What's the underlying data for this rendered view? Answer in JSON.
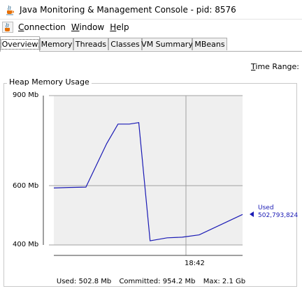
{
  "window": {
    "title": "Java Monitoring & Management Console - pid: 8576"
  },
  "icons": {
    "app": "java-cup-icon"
  },
  "menu": [
    {
      "mnemonic": "C",
      "rest": "onnection"
    },
    {
      "mnemonic": "W",
      "rest": "indow"
    },
    {
      "mnemonic": "H",
      "rest": "elp"
    }
  ],
  "tabs": [
    {
      "label": "Overview",
      "active": true
    },
    {
      "label": "Memory"
    },
    {
      "label": "Threads"
    },
    {
      "label": "Classes"
    },
    {
      "label": "VM Summary"
    },
    {
      "label": "MBeans"
    }
  ],
  "time_range": {
    "mnemonic": "T",
    "rest": "ime Range:"
  },
  "panel": {
    "title": "Heap Memory Usage"
  },
  "chart_data": {
    "type": "line",
    "title": "Heap Memory Usage",
    "ylim": [
      400,
      900
    ],
    "ytick_labels": [
      "900 Mb",
      "600 Mb",
      "400 Mb"
    ],
    "yticks": [
      900,
      600,
      400
    ],
    "xtick_labels": [
      "18:42"
    ],
    "grid": true,
    "series": [
      {
        "name": "Used",
        "color": "#1a1ab5",
        "points": [
          [
            0.0,
            592
          ],
          [
            0.08,
            594
          ],
          [
            0.17,
            595
          ],
          [
            0.28,
            740
          ],
          [
            0.34,
            805
          ],
          [
            0.4,
            805
          ],
          [
            0.45,
            810
          ],
          [
            0.51,
            414
          ],
          [
            0.6,
            424
          ],
          [
            0.68,
            426
          ],
          [
            0.77,
            434
          ],
          [
            1.0,
            502.8
          ]
        ]
      }
    ],
    "legend": {
      "label": "Used",
      "value": "502,793,824",
      "placement": "right"
    }
  },
  "footer": {
    "used": "Used: 502.8 Mb",
    "committed": "Committed: 954.2 Mb",
    "max": "Max: 2.1 Gb"
  }
}
